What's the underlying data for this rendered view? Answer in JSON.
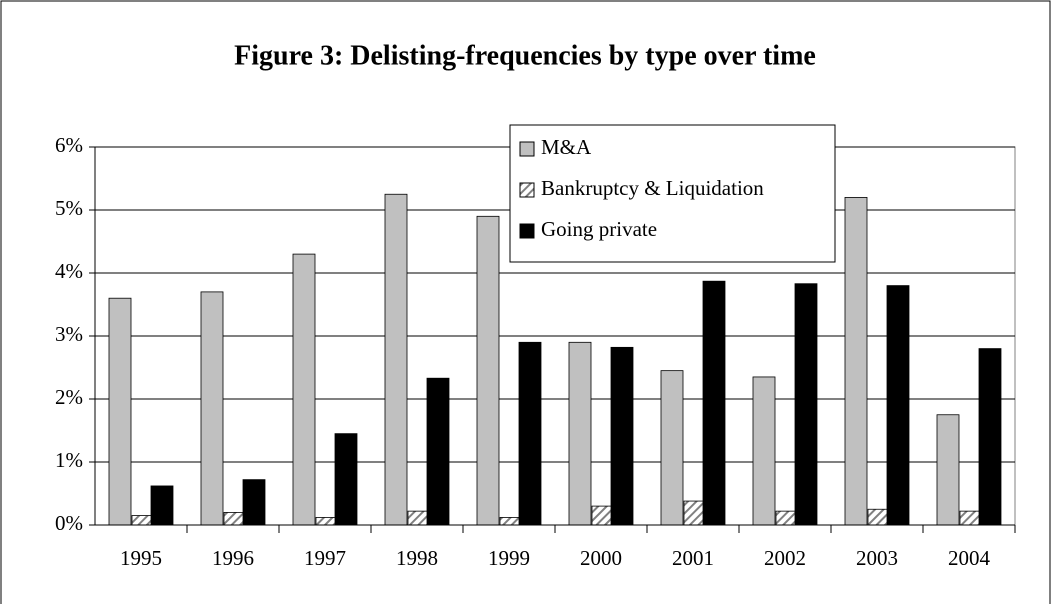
{
  "chart_data": {
    "type": "bar",
    "title": "Figure 3: Delisting-frequencies by type over time",
    "categories": [
      "1995",
      "1996",
      "1997",
      "1998",
      "1999",
      "2000",
      "2001",
      "2002",
      "2003",
      "2004"
    ],
    "series": [
      {
        "name": "M&A",
        "color": "#c0c0c0",
        "values": [
          3.6,
          3.7,
          4.3,
          5.25,
          4.9,
          2.9,
          2.45,
          2.35,
          5.2,
          1.75
        ]
      },
      {
        "name": "Bankruptcy & Liquidation",
        "color": "#808080",
        "pattern": "hatch",
        "values": [
          0.15,
          0.2,
          0.12,
          0.22,
          0.12,
          0.3,
          0.38,
          0.22,
          0.25,
          0.22
        ]
      },
      {
        "name": "Going private",
        "color": "#000000",
        "values": [
          0.62,
          0.72,
          1.45,
          2.33,
          2.9,
          2.82,
          3.87,
          3.83,
          3.8,
          2.8
        ]
      }
    ],
    "ylim": [
      0,
      6
    ],
    "yticks": [
      {
        "value": 0,
        "label": "0%"
      },
      {
        "value": 1,
        "label": "1%"
      },
      {
        "value": 2,
        "label": "2%"
      },
      {
        "value": 3,
        "label": "3%"
      },
      {
        "value": 4,
        "label": "4%"
      },
      {
        "value": 5,
        "label": "5%"
      },
      {
        "value": 6,
        "label": "6%"
      }
    ],
    "grid": true
  }
}
